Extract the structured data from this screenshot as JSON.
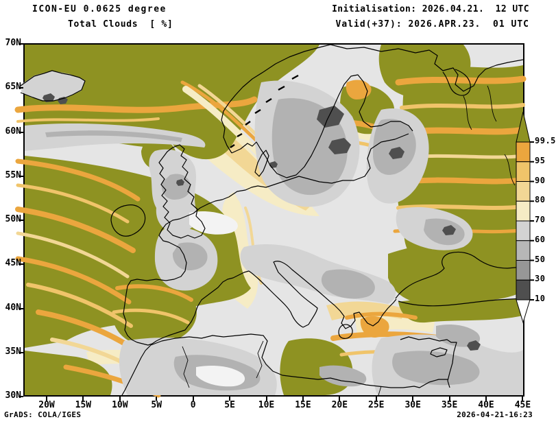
{
  "header": {
    "model": "ICON-EU 0.0625 degree",
    "parameter": "Total Clouds  [ %]",
    "initialisation": "Initialisation: 2026.04.21.  12 UTC",
    "valid": "Valid(+37): 2026.APR.23.  01 UTC"
  },
  "map_axes": {
    "lat_labels": [
      "70N",
      "65N",
      "60N",
      "55N",
      "50N",
      "45N",
      "40N",
      "35N",
      "30N"
    ],
    "lon_labels": [
      "20W",
      "15W",
      "10W",
      "5W",
      "0",
      "5E",
      "10E",
      "15E",
      "20E",
      "25E",
      "30E",
      "35E",
      "40E",
      "45E"
    ]
  },
  "colorbar": {
    "boundary_labels": [
      "99.5",
      "95",
      "90",
      "80",
      "70",
      "60",
      "50",
      "30",
      "10"
    ],
    "above_top_color": "#8e9222",
    "segment_colors": [
      "#eba63e",
      "#f0c46a",
      "#f2d795",
      "#f6ecc5",
      "#d3d3d3",
      "#b7b7b7",
      "#979797",
      "#4f4f4f"
    ],
    "below_bottom_color": "#ffffff"
  },
  "map_colors": {
    "clear_bg": "#e5e5e5",
    "overcast_olive": "#8e9222",
    "orange": "#eba63e",
    "light_orange": "#f0c46a",
    "tan": "#f2d795",
    "cream": "#f6ecc5",
    "gray_light": "#d3d3d3",
    "gray_mid": "#b2b2b2",
    "gray_vdark": "#4f4f4f",
    "coastline": "#000000"
  },
  "footer": {
    "credit": "GrADS: COLA/IGES",
    "timestamp": "2026-04-21-16:23"
  }
}
